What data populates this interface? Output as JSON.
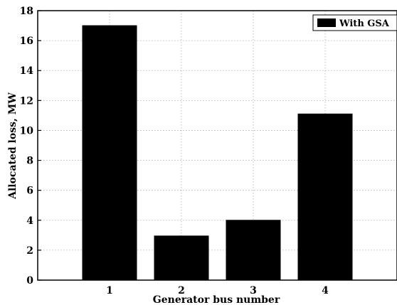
{
  "chart_data": {
    "type": "bar",
    "categories": [
      "1",
      "2",
      "3",
      "4"
    ],
    "series": [
      {
        "name": "With GSA",
        "values": [
          17,
          2.95,
          4.0,
          11.1
        ]
      }
    ],
    "xlabel": "Generator bus number",
    "ylabel": "Allocated loss, MW",
    "ylim": [
      0,
      18
    ],
    "yticks": [
      "0",
      "2",
      "4",
      "6",
      "8",
      "10",
      "12",
      "14",
      "16",
      "18"
    ],
    "grid": true,
    "legend_position": "top-right",
    "bar_color": "#000000"
  }
}
